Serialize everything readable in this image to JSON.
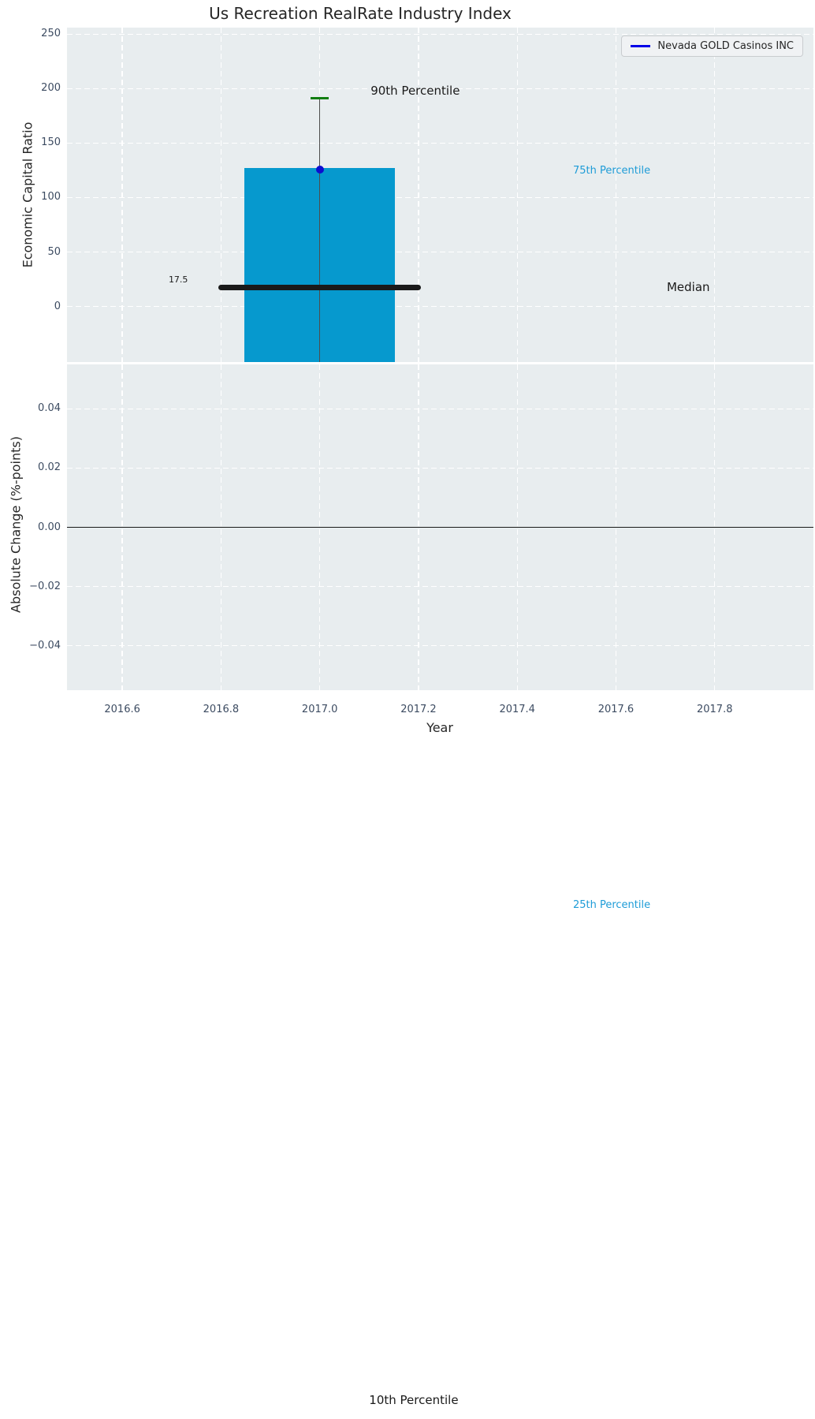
{
  "figure": {
    "title": "Us Recreation RealRate Industry Index",
    "legend": {
      "label": "Nevada GOLD Casinos INC",
      "line_color": "#0000e8"
    }
  },
  "colors": {
    "plot_bg": "#e8edef",
    "grid": "#ffffff",
    "bar": "#0699ce",
    "whisker": "#4d4d4d",
    "cap_green": "#107d10",
    "marker_blue": "#0d0dd0",
    "cyan_text": "#1e9cd7",
    "tick_label": "#3c4b61",
    "dark_text": "#1a1a1a",
    "zero_line": "#1a1a1a"
  },
  "chart_data": [
    {
      "type": "boxbar",
      "name": "economic-capital-ratio",
      "ylabel": "Economic Capital Ratio",
      "legend_entry": "Nevada GOLD Casinos INC",
      "xlim": [
        2016.488,
        2018.0
      ],
      "ylim": [
        -51,
        256
      ],
      "grid": true,
      "xticks": [
        {
          "v": 2016.6,
          "label": "2016.6"
        },
        {
          "v": 2016.8,
          "label": "2016.8"
        },
        {
          "v": 2017.0,
          "label": "2017.0"
        },
        {
          "v": 2017.2,
          "label": "2017.2"
        },
        {
          "v": 2017.4,
          "label": "2017.4"
        },
        {
          "v": 2017.6,
          "label": "2017.6"
        },
        {
          "v": 2017.8,
          "label": "2017.8"
        }
      ],
      "yticks": [
        {
          "v": 0,
          "label": "0"
        },
        {
          "v": 50,
          "label": "50"
        },
        {
          "v": 100,
          "label": "100"
        },
        {
          "v": 150,
          "label": "150"
        },
        {
          "v": 200,
          "label": "200"
        },
        {
          "v": 250,
          "label": "250"
        }
      ],
      "box": {
        "x_center": 2017.0,
        "half_width": 0.152,
        "cap_half_width": 0.018,
        "median_half_width": 0.2,
        "p90": 191,
        "p75": 127,
        "median": 17.5,
        "p25": -550,
        "p10": -1004,
        "company_point": 126
      },
      "annotations": [
        {
          "label": "90th Percentile",
          "x": 2017.103,
          "y": 198,
          "color": "dark",
          "size": 15,
          "align": "left"
        },
        {
          "label": "75th Percentile",
          "x": 2017.513,
          "y": 124,
          "color": "cyan",
          "size": 13,
          "align": "left"
        },
        {
          "label": "Median",
          "x": 2017.703,
          "y": 18,
          "color": "dark",
          "size": 15,
          "align": "left"
        },
        {
          "label": "17.5",
          "x": 2016.733,
          "y": 24,
          "color": "dark",
          "size": 11,
          "align": "right"
        },
        {
          "label": "25th Percentile",
          "x": 2017.513,
          "y": -550,
          "color": "cyan",
          "size": 13,
          "align": "left"
        },
        {
          "label": "10th Percentile",
          "x": 2017.1,
          "y": -1004,
          "color": "dark",
          "size": 15,
          "align": "left"
        }
      ]
    },
    {
      "type": "line",
      "name": "absolute-change",
      "ylabel": "Absolute Change (%-points)",
      "xlabel": "Year",
      "xlim": [
        2016.488,
        2018.0
      ],
      "ylim": [
        -0.055,
        0.055
      ],
      "grid": true,
      "zero_line": 0.0,
      "xticks": [
        {
          "v": 2016.6,
          "label": "2016.6"
        },
        {
          "v": 2016.8,
          "label": "2016.8"
        },
        {
          "v": 2017.0,
          "label": "2017.0"
        },
        {
          "v": 2017.2,
          "label": "2017.2"
        },
        {
          "v": 2017.4,
          "label": "2017.4"
        },
        {
          "v": 2017.6,
          "label": "2017.6"
        },
        {
          "v": 2017.8,
          "label": "2017.8"
        }
      ],
      "yticks": [
        {
          "v": 0.04,
          "label": "0.04"
        },
        {
          "v": 0.02,
          "label": "0.02"
        },
        {
          "v": 0.0,
          "label": "0.00"
        },
        {
          "v": -0.02,
          "label": "−0.02"
        },
        {
          "v": -0.04,
          "label": "−0.04"
        }
      ]
    }
  ]
}
